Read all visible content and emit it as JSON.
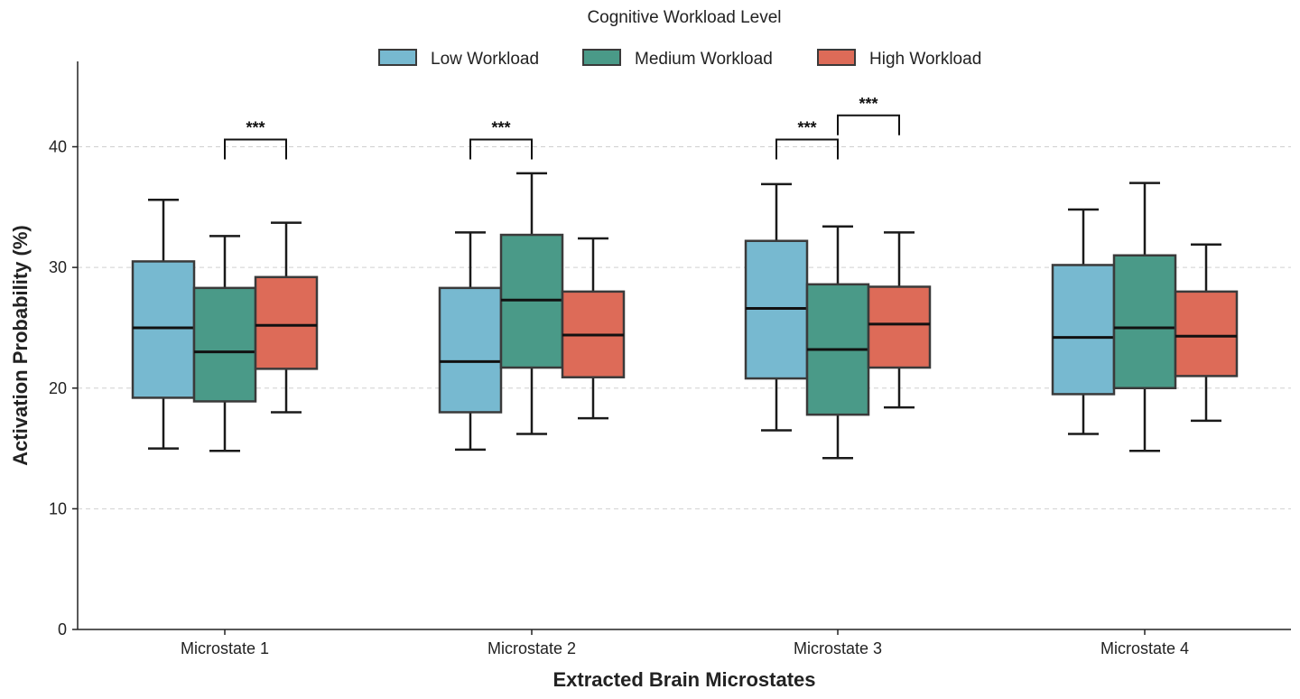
{
  "chart_data": {
    "type": "box",
    "legend_title": "Cognitive Workload Level",
    "legend_placement": "top-center",
    "xlabel": "Extracted Brain Microstates",
    "ylabel": "Activation Probability (%)",
    "ylim": [
      0,
      47
    ],
    "yticks": [
      0,
      10,
      20,
      30,
      40
    ],
    "grid": "horizontal-dashed",
    "categories": [
      "Microstate 1",
      "Microstate 2",
      "Microstate 3",
      "Microstate 4"
    ],
    "series": [
      {
        "name": "Low Workload",
        "color": "#77B9D0",
        "boxes": [
          {
            "whisker_low": 15.0,
            "q1": 19.2,
            "median": 25.0,
            "q3": 30.5,
            "whisker_high": 35.6
          },
          {
            "whisker_low": 14.9,
            "q1": 18.0,
            "median": 22.2,
            "q3": 28.3,
            "whisker_high": 32.9
          },
          {
            "whisker_low": 16.5,
            "q1": 20.8,
            "median": 26.6,
            "q3": 32.2,
            "whisker_high": 36.9
          },
          {
            "whisker_low": 16.2,
            "q1": 19.5,
            "median": 24.2,
            "q3": 30.2,
            "whisker_high": 34.8
          }
        ]
      },
      {
        "name": "Medium Workload",
        "color": "#4A9A88",
        "boxes": [
          {
            "whisker_low": 14.8,
            "q1": 18.9,
            "median": 23.0,
            "q3": 28.3,
            "whisker_high": 32.6
          },
          {
            "whisker_low": 16.2,
            "q1": 21.7,
            "median": 27.3,
            "q3": 32.7,
            "whisker_high": 37.8
          },
          {
            "whisker_low": 14.2,
            "q1": 17.8,
            "median": 23.2,
            "q3": 28.6,
            "whisker_high": 33.4
          },
          {
            "whisker_low": 14.8,
            "q1": 20.0,
            "median": 25.0,
            "q3": 31.0,
            "whisker_high": 37.0
          }
        ]
      },
      {
        "name": "High Workload",
        "color": "#DD6B58",
        "boxes": [
          {
            "whisker_low": 18.0,
            "q1": 21.6,
            "median": 25.2,
            "q3": 29.2,
            "whisker_high": 33.7
          },
          {
            "whisker_low": 17.5,
            "q1": 20.9,
            "median": 24.4,
            "q3": 28.0,
            "whisker_high": 32.4
          },
          {
            "whisker_low": 18.4,
            "q1": 21.7,
            "median": 25.3,
            "q3": 28.4,
            "whisker_high": 32.9
          },
          {
            "whisker_low": 17.3,
            "q1": 21.0,
            "median": 24.3,
            "q3": 28.0,
            "whisker_high": 31.9
          }
        ]
      }
    ],
    "significance": [
      {
        "category": 0,
        "from_series": 1,
        "to_series": 2,
        "y": 40.6,
        "label": "***"
      },
      {
        "category": 1,
        "from_series": 0,
        "to_series": 1,
        "y": 40.6,
        "label": "***"
      },
      {
        "category": 2,
        "from_series": 0,
        "to_series": 1,
        "y": 40.6,
        "label": "***"
      },
      {
        "category": 2,
        "from_series": 1,
        "to_series": 2,
        "y": 42.6,
        "label": "***"
      }
    ]
  }
}
